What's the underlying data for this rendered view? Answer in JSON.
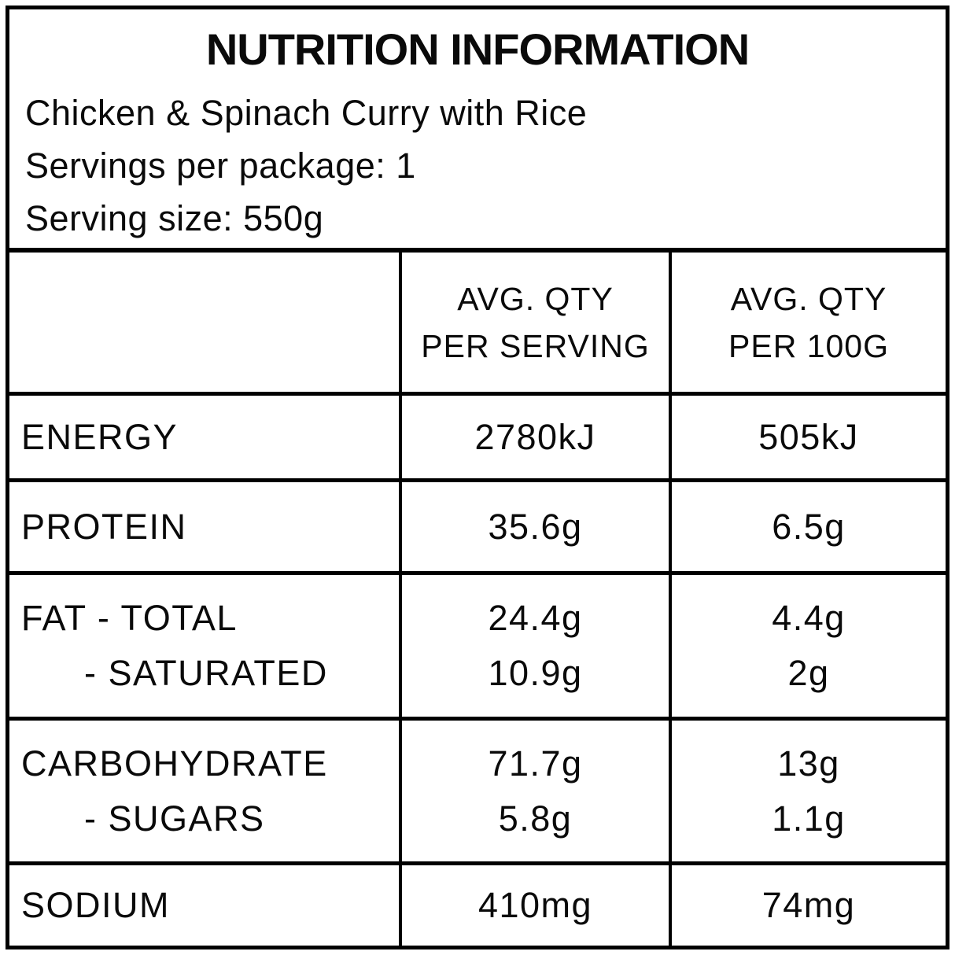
{
  "page": {
    "background_color": "#ffffff",
    "border_color": "#000000",
    "text_color": "#0a0a0a"
  },
  "header": {
    "title": "NUTRITION INFORMATION",
    "product_name": "Chicken & Spinach Curry with Rice",
    "servings_per_package": "Servings per package: 1",
    "serving_size": "Serving size: 550g"
  },
  "table": {
    "columns": [
      {
        "header_lines": [
          "",
          ""
        ]
      },
      {
        "header_lines": [
          "AVG. QTY",
          "PER SERVING"
        ]
      },
      {
        "header_lines": [
          "AVG. QTY",
          "PER 100G"
        ]
      }
    ],
    "rows": [
      {
        "label_lines": [
          "ENERGY"
        ],
        "per_serving_lines": [
          "2780kJ"
        ],
        "per_100g_lines": [
          "505kJ"
        ]
      },
      {
        "label_lines": [
          "PROTEIN"
        ],
        "per_serving_lines": [
          "35.6g"
        ],
        "per_100g_lines": [
          "6.5g"
        ]
      },
      {
        "label_lines": [
          "FAT - TOTAL",
          "- SATURATED"
        ],
        "per_serving_lines": [
          "24.4g",
          "10.9g"
        ],
        "per_100g_lines": [
          "4.4g",
          "2g"
        ]
      },
      {
        "label_lines": [
          "CARBOHYDRATE",
          "- SUGARS"
        ],
        "per_serving_lines": [
          "71.7g",
          "5.8g"
        ],
        "per_100g_lines": [
          "13g",
          "1.1g"
        ]
      },
      {
        "label_lines": [
          "SODIUM"
        ],
        "per_serving_lines": [
          "410mg"
        ],
        "per_100g_lines": [
          "74mg"
        ]
      }
    ]
  }
}
